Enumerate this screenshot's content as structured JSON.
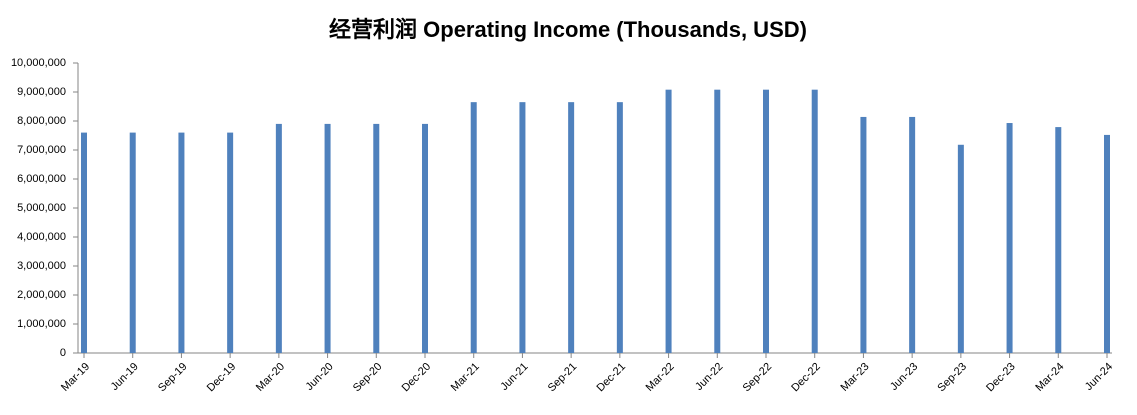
{
  "chart_data": {
    "type": "bar",
    "title": "经营利润 Operating Income (Thousands, USD)",
    "categories": [
      "Mar-19",
      "Jun-19",
      "Sep-19",
      "Dec-19",
      "Mar-20",
      "Jun-20",
      "Sep-20",
      "Dec-20",
      "Mar-21",
      "Jun-21",
      "Sep-21",
      "Dec-21",
      "Mar-22",
      "Jun-22",
      "Sep-22",
      "Dec-22",
      "Mar-23",
      "Jun-23",
      "Sep-23",
      "Dec-23",
      "Mar-24",
      "Jun-24"
    ],
    "values": [
      7600000,
      7600000,
      7600000,
      7600000,
      7900000,
      7900000,
      7900000,
      7900000,
      8650000,
      8650000,
      8650000,
      8650000,
      9080000,
      9080000,
      9080000,
      9080000,
      8140000,
      8140000,
      7180000,
      7930000,
      7790000,
      7520000
    ],
    "color": "#4f81bd",
    "ylim": [
      0,
      10000000
    ],
    "yticks": [
      0,
      {
        "value": 1000000,
        "label": "1,000,000"
      },
      {
        "value": 2000000,
        "label": "2,000,000"
      },
      {
        "value": 3000000,
        "label": "3,000,000"
      },
      {
        "value": 4000000,
        "label": "4,000,000"
      },
      {
        "value": 5000000,
        "label": "5,000,000"
      },
      {
        "value": 6000000,
        "label": "6,000,000"
      },
      {
        "value": 7000000,
        "label": "7,000,000"
      },
      {
        "value": 8000000,
        "label": "8,000,000"
      },
      {
        "value": 9000000,
        "label": "9,000,000"
      },
      {
        "value": 10000000,
        "label": "10,000,000"
      }
    ],
    "grid": false
  }
}
